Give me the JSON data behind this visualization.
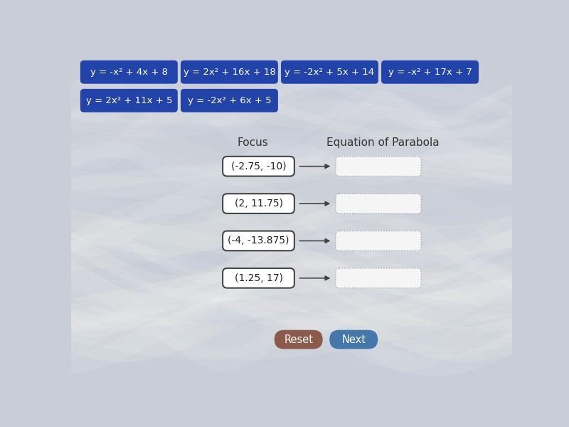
{
  "background_color": "#c8cdd8",
  "blue_buttons_row1": [
    "y = -x² + 4x + 8",
    "y = 2x² + 16x + 18",
    "y = -2x² + 5x + 14",
    "y = -x² + 17x + 7"
  ],
  "blue_buttons_row2": [
    "y = 2x² + 11x + 5",
    "y = -2x² + 6x + 5"
  ],
  "button_bg": "#2244aa",
  "button_text_color": "#ffffff",
  "focus_label": "Focus",
  "equation_label": "Equation of Parabola",
  "foci": [
    "(-2.75, -10)",
    "(2, 11.75)",
    "(-4, -13.875)",
    "(1.25, 17)"
  ],
  "focus_box_bg": "#ffffff",
  "focus_box_border": "#444444",
  "answer_box_bg": "#f5f5f5",
  "answer_box_border": "#aaaaaa",
  "arrow_color": "#444444",
  "reset_button_color": "#8B5A4A",
  "next_button_color": "#4477aa",
  "reset_label": "Reset",
  "next_label": "Next",
  "label_color": "#333333",
  "figsize": [
    8.0,
    6.0
  ],
  "dpi": 100
}
